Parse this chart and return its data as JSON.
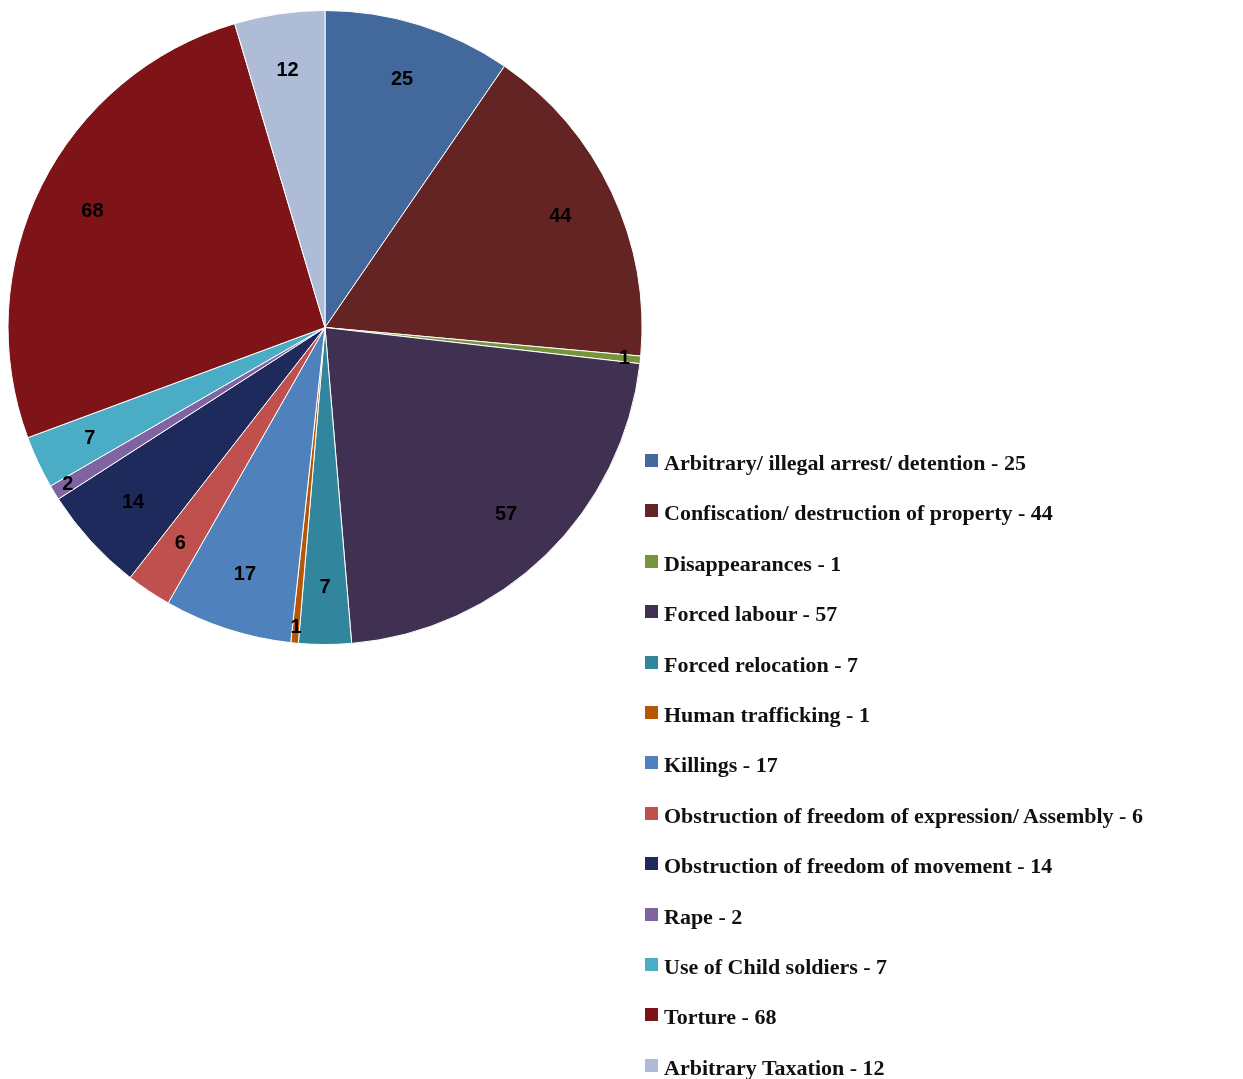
{
  "chart_data": {
    "type": "pie",
    "categories": [
      "Arbitrary/ illegal arrest/ detention - 25",
      "Confiscation/ destruction of property - 44",
      "Disappearances - 1",
      "Forced labour - 57",
      "Forced relocation - 7",
      "Human trafficking - 1",
      "Killings - 17",
      "Obstruction of freedom of expression/ Assembly - 6",
      "Obstruction of freedom of movement - 14",
      "Rape - 2",
      "Use of Child soldiers - 7",
      "Torture - 68",
      "Arbitrary Taxation - 12"
    ],
    "values": [
      25,
      44,
      1,
      57,
      7,
      1,
      17,
      6,
      14,
      2,
      7,
      68,
      12
    ],
    "colors": [
      "#43699c",
      "#632423",
      "#77933c",
      "#403152",
      "#31859c",
      "#b65708",
      "#4f81bd",
      "#c0504d",
      "#1f2a5c",
      "#8064a2",
      "#4bacc6",
      "#7f1418",
      "#aebcd8"
    ],
    "data_labels": true,
    "legend": "right"
  }
}
